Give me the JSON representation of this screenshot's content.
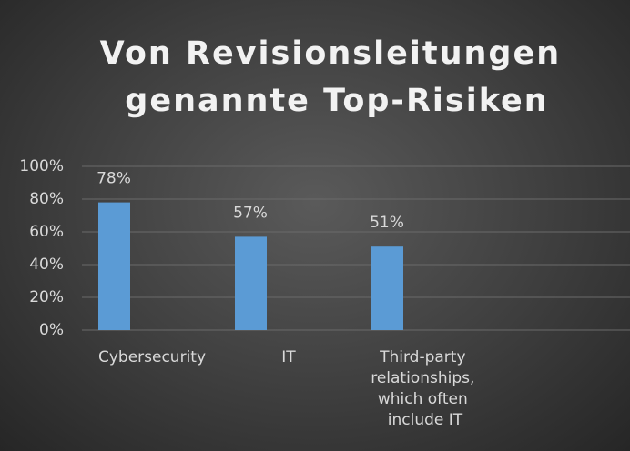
{
  "chart_data": {
    "type": "bar",
    "title": "Von Revisionsleitungen genannte Top-Risiken",
    "categories": [
      "Cybersecurity",
      "IT",
      "Third-party relationships, which often include IT",
      null
    ],
    "values": [
      78,
      57,
      51,
      null
    ],
    "value_labels": [
      "78%",
      "57%",
      "51%",
      null
    ],
    "color": "#5b9bd5",
    "ylim": [
      0,
      100
    ],
    "yticks": [
      {
        "value": 0,
        "label": "0%"
      },
      {
        "value": 20,
        "label": "20%"
      },
      {
        "value": 40,
        "label": "40%"
      },
      {
        "value": 60,
        "label": "60%"
      },
      {
        "value": 80,
        "label": "80%"
      },
      {
        "value": 100,
        "label": "100%"
      }
    ],
    "grid": true
  }
}
